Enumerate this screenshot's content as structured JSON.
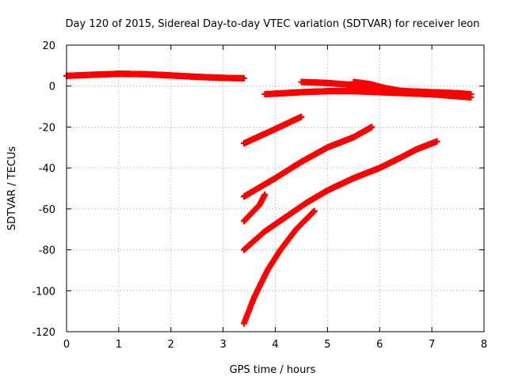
{
  "chart_data": {
    "type": "scatter",
    "title": "Day 120 of 2015, Sidereal Day-to-day VTEC variation (SDTVAR) for receiver leon",
    "xlabel": "GPS time / hours",
    "ylabel": "SDTVAR / TECUs",
    "xlim": [
      0,
      8
    ],
    "ylim": [
      -120,
      20
    ],
    "xticks": [
      "0",
      "1",
      "2",
      "3",
      "4",
      "5",
      "6",
      "7",
      "8"
    ],
    "yticks": [
      "20",
      "0",
      "-20",
      "-40",
      "-60",
      "-80",
      "-100",
      "-120"
    ],
    "grid": true,
    "marker": "+",
    "color": "#ff0000",
    "series": [
      {
        "points": [
          [
            0,
            5
          ],
          [
            0.5,
            5.5
          ],
          [
            1,
            6
          ],
          [
            1.5,
            5.8
          ],
          [
            2,
            5.2
          ],
          [
            2.5,
            4.5
          ],
          [
            3,
            4
          ],
          [
            3.4,
            3.8
          ]
        ]
      },
      {
        "points": [
          [
            4.5,
            2
          ],
          [
            5,
            1.5
          ],
          [
            5.5,
            0.5
          ],
          [
            6,
            -1.5
          ],
          [
            6.5,
            -2.5
          ],
          [
            7,
            -3
          ],
          [
            7.5,
            -3.5
          ],
          [
            7.75,
            -4
          ]
        ]
      },
      {
        "points": [
          [
            5.5,
            2
          ],
          [
            5.8,
            1
          ],
          [
            6.1,
            -1
          ],
          [
            6.5,
            -2.8
          ],
          [
            7,
            -4
          ],
          [
            7.5,
            -5
          ],
          [
            7.75,
            -5.5
          ]
        ]
      },
      {
        "points": [
          [
            3.8,
            -4
          ],
          [
            4.5,
            -3
          ],
          [
            5,
            -2.5
          ],
          [
            5.5,
            -2.5
          ],
          [
            6,
            -3
          ],
          [
            6.5,
            -3.5
          ],
          [
            7,
            -4
          ],
          [
            7.6,
            -4.5
          ]
        ]
      },
      {
        "points": [
          [
            3.4,
            -28
          ],
          [
            4,
            -21
          ],
          [
            4.5,
            -15
          ]
        ]
      },
      {
        "points": [
          [
            3.4,
            -54
          ],
          [
            4,
            -45
          ],
          [
            4.5,
            -37
          ],
          [
            5,
            -30
          ],
          [
            5.5,
            -25
          ],
          [
            5.85,
            -20
          ]
        ]
      },
      {
        "points": [
          [
            3.4,
            -66
          ],
          [
            3.7,
            -58
          ],
          [
            3.8,
            -53
          ]
        ]
      },
      {
        "points": [
          [
            3.4,
            -80
          ],
          [
            3.8,
            -71
          ],
          [
            4.2,
            -64
          ],
          [
            4.6,
            -57
          ],
          [
            5,
            -51
          ],
          [
            5.5,
            -45
          ],
          [
            6,
            -40
          ],
          [
            6.4,
            -35
          ],
          [
            6.7,
            -31
          ],
          [
            7.1,
            -27
          ]
        ]
      },
      {
        "points": [
          [
            3.4,
            -116
          ],
          [
            3.6,
            -103
          ],
          [
            3.85,
            -90
          ],
          [
            4.1,
            -80
          ],
          [
            4.4,
            -70
          ],
          [
            4.75,
            -61
          ]
        ]
      }
    ]
  }
}
